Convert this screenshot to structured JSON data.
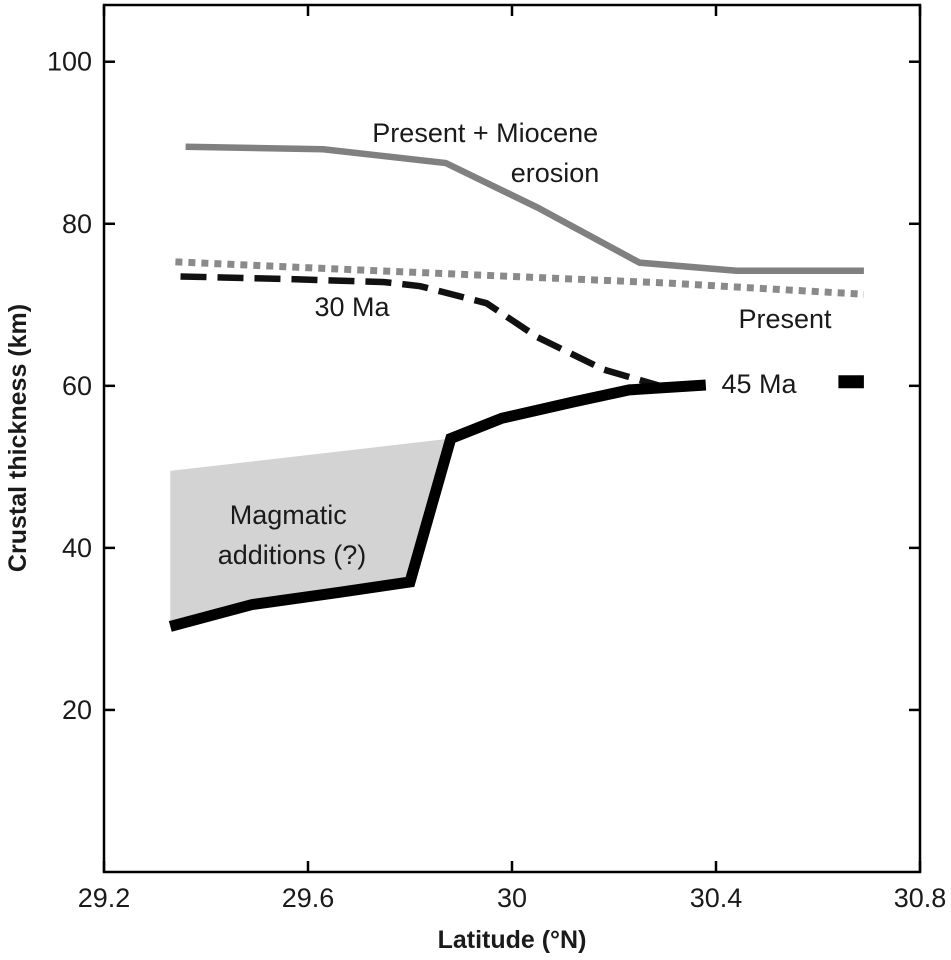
{
  "chart_data": {
    "type": "line",
    "title": "",
    "xlabel": "Latitude (°N)",
    "ylabel": "Crustal thickness (km)",
    "xlim": [
      29.2,
      30.8
    ],
    "ylim": [
      0,
      107
    ],
    "xticks": [
      29.2,
      29.6,
      30,
      30.4,
      30.8
    ],
    "xtick_labels": [
      "29.2",
      "29.6",
      "30",
      "30.4",
      "30.8"
    ],
    "yticks": [
      20,
      40,
      60,
      80,
      100
    ],
    "ytick_labels": [
      "20",
      "40",
      "60",
      "80",
      "100"
    ],
    "grid": false,
    "series": [
      {
        "name": "Present + Miocene erosion",
        "label_lines": [
          "Present + Miocene",
          "erosion"
        ],
        "style": "solid",
        "color": "#808080",
        "x": [
          29.36,
          29.63,
          29.87,
          30.05,
          30.25,
          30.44,
          30.69
        ],
        "y": [
          89.5,
          89.2,
          87.5,
          82,
          75.2,
          74.2,
          74.2
        ]
      },
      {
        "name": "Present",
        "label_lines": [
          "Present"
        ],
        "style": "dotted",
        "color": "#8a8a8a",
        "x": [
          29.34,
          29.7,
          30.0,
          30.3,
          30.69
        ],
        "y": [
          75.3,
          74.3,
          73.5,
          72.7,
          71.3
        ]
      },
      {
        "name": "30 Ma",
        "label_lines": [
          "30 Ma"
        ],
        "style": "dashed",
        "color": "#111111",
        "x": [
          29.35,
          29.55,
          29.75,
          29.82,
          29.95,
          30.05,
          30.18,
          30.29
        ],
        "y": [
          73.5,
          73.2,
          72.8,
          72.3,
          70.2,
          66,
          62,
          60
        ]
      },
      {
        "name": "45 Ma",
        "label_lines": [
          "45 Ma"
        ],
        "style": "solid-thick",
        "color": "#000000",
        "x": [
          29.33,
          29.49,
          29.66,
          29.8,
          29.88,
          29.98,
          30.12,
          30.23,
          30.38
        ],
        "y": [
          30.3,
          33,
          34.5,
          35.8,
          53.5,
          56,
          58,
          59.5,
          60.1
        ],
        "legend_dash": {
          "x": [
            30.64,
            30.69
          ],
          "y": [
            60.5,
            60.5
          ]
        }
      }
    ],
    "shaded_region": {
      "name": "Magmatic additions (?)",
      "label_lines": [
        "Magmatic",
        "additions (?)"
      ],
      "color": "#d3d3d3",
      "polygon_x": [
        29.33,
        29.88,
        29.8,
        29.66,
        29.49,
        29.33
      ],
      "polygon_y": [
        49.5,
        53.5,
        35.8,
        34.5,
        33,
        31
      ]
    }
  }
}
